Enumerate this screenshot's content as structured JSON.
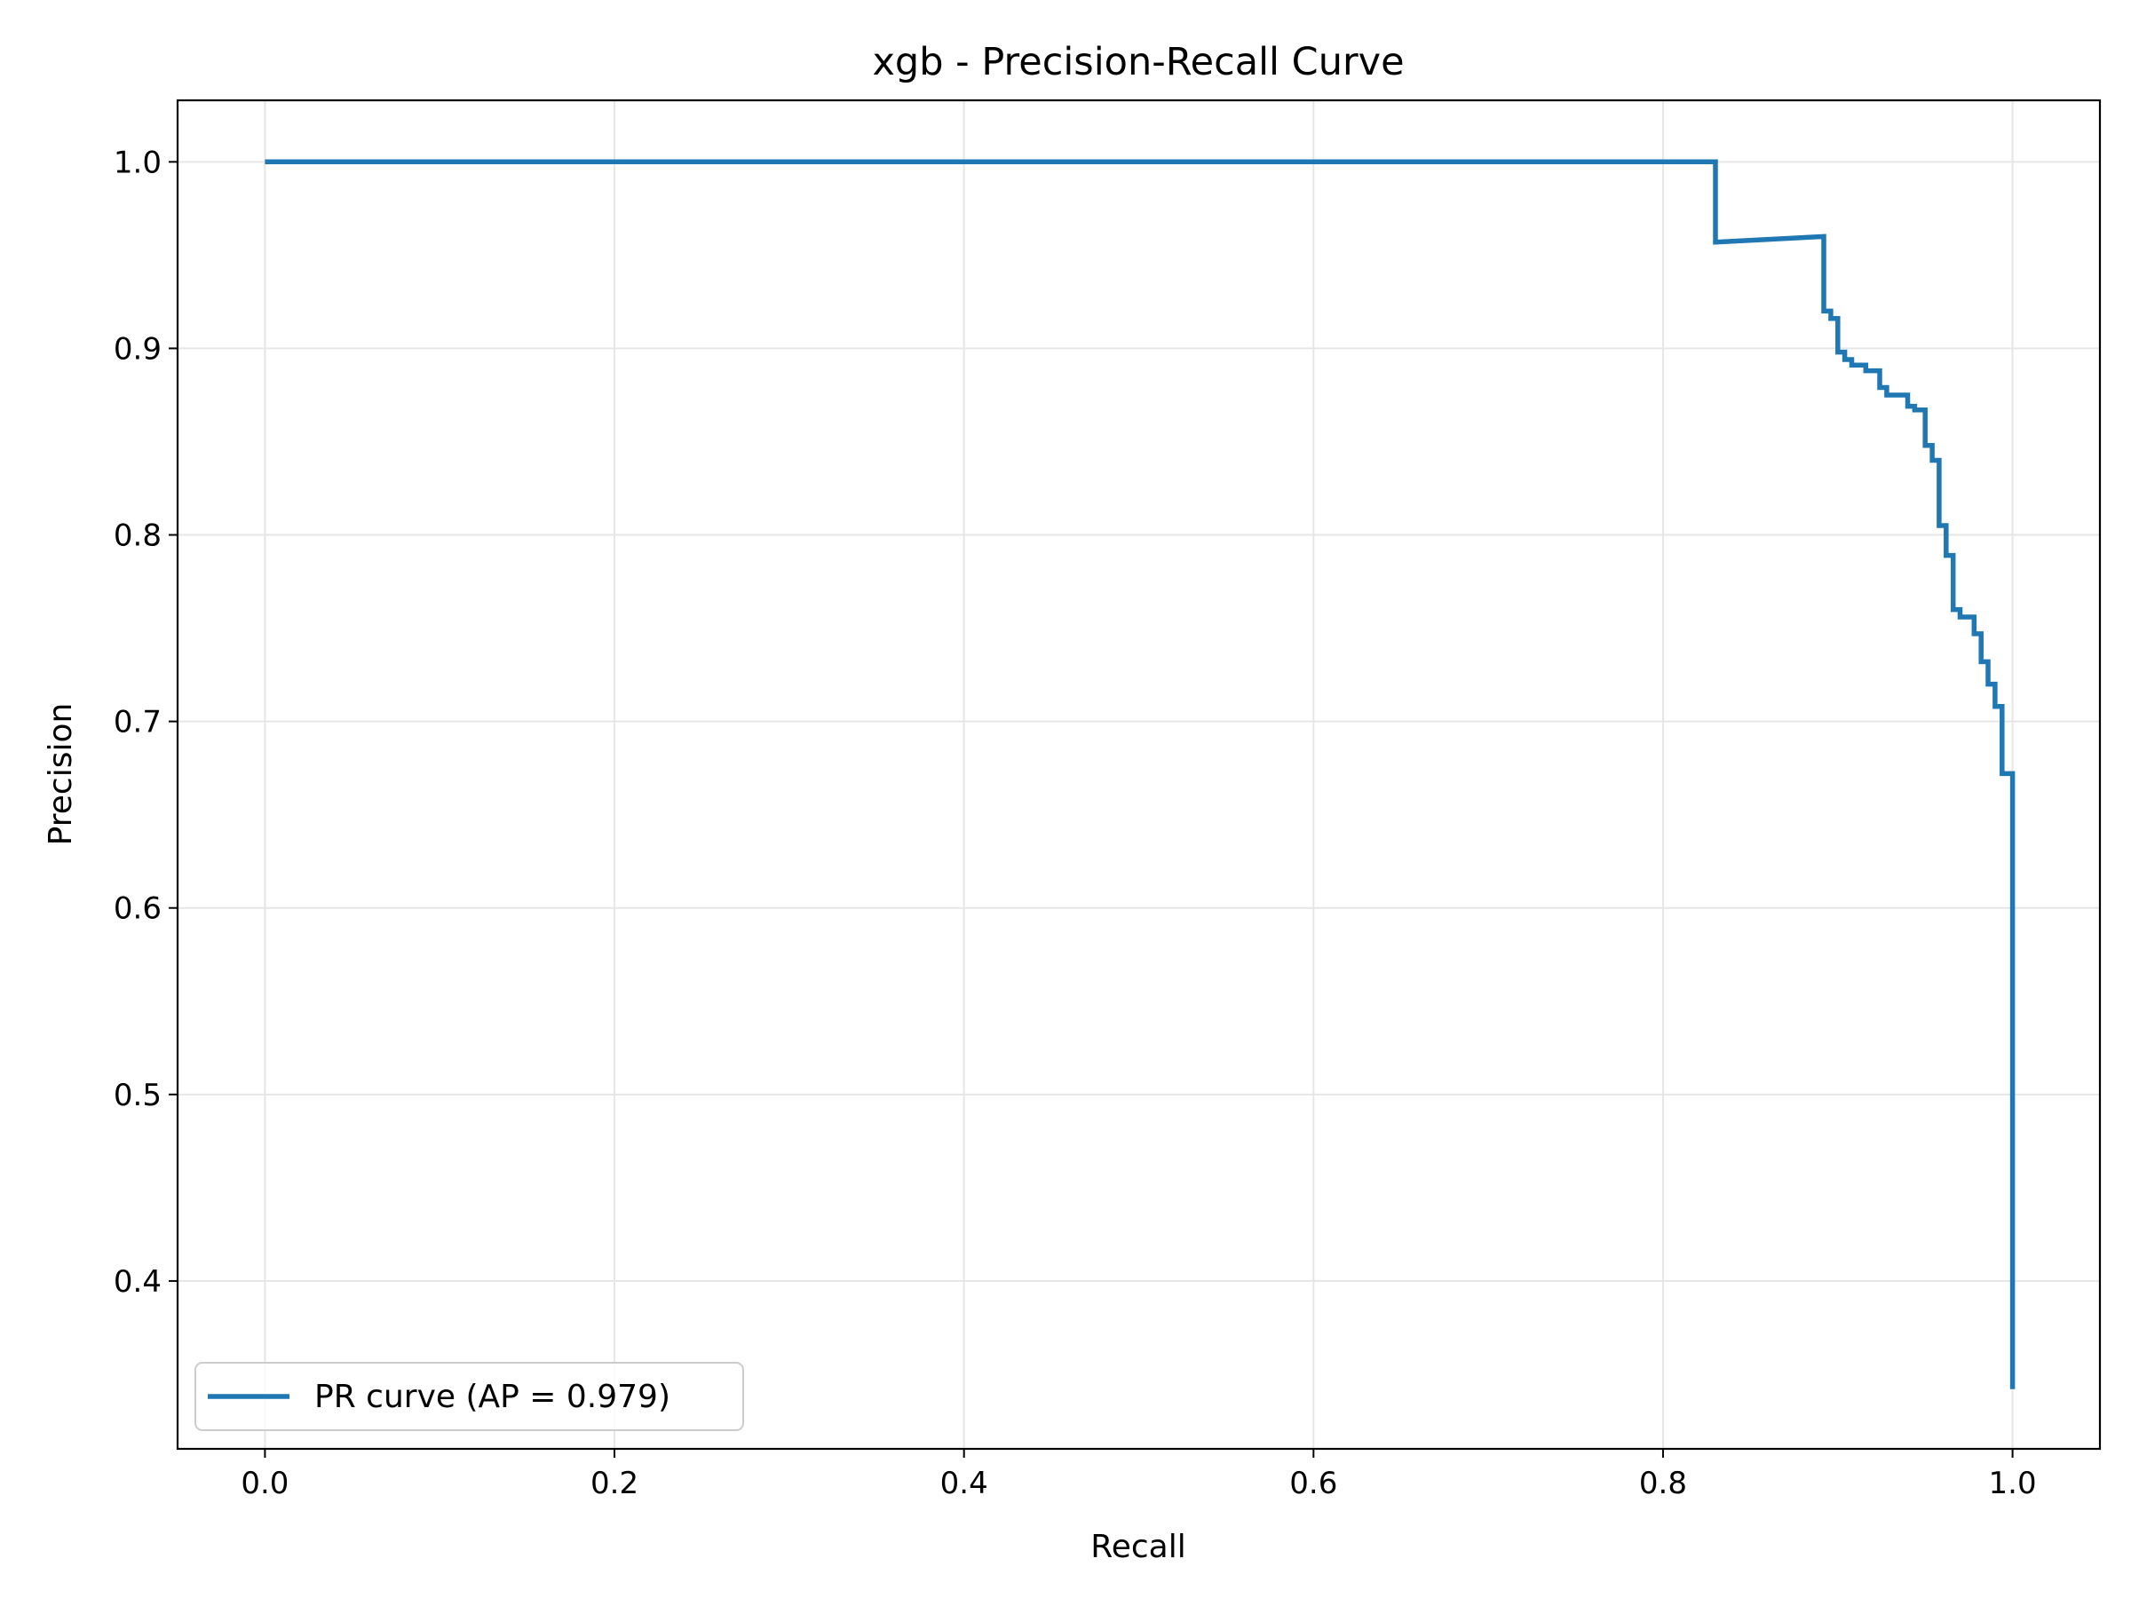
{
  "chart_data": {
    "type": "line",
    "title": "xgb - Precision-Recall Curve",
    "xlabel": "Recall",
    "ylabel": "Precision",
    "xlim": [
      -0.05,
      1.05
    ],
    "ylim": [
      0.31,
      1.033
    ],
    "xticks": [
      0.0,
      0.2,
      0.4,
      0.6,
      0.8,
      1.0
    ],
    "xtick_labels": [
      "0.0",
      "0.2",
      "0.4",
      "0.6",
      "0.8",
      "1.0"
    ],
    "yticks": [
      0.4,
      0.5,
      0.6,
      0.7,
      0.8,
      0.9,
      1.0
    ],
    "ytick_labels": [
      "0.4",
      "0.5",
      "0.6",
      "0.7",
      "0.8",
      "0.9",
      "1.0"
    ],
    "grid": true,
    "legend_position": "lower-left",
    "series": [
      {
        "name": "PR curve (AP = 0.979)",
        "color": "#1f77b4",
        "points": [
          [
            0.0,
            1.0
          ],
          [
            0.83,
            1.0
          ],
          [
            0.83,
            0.957
          ],
          [
            0.892,
            0.96
          ],
          [
            0.892,
            0.92
          ],
          [
            0.896,
            0.92
          ],
          [
            0.896,
            0.916
          ],
          [
            0.9,
            0.916
          ],
          [
            0.9,
            0.898
          ],
          [
            0.904,
            0.898
          ],
          [
            0.904,
            0.894
          ],
          [
            0.908,
            0.894
          ],
          [
            0.908,
            0.891
          ],
          [
            0.916,
            0.891
          ],
          [
            0.916,
            0.888
          ],
          [
            0.924,
            0.888
          ],
          [
            0.924,
            0.879
          ],
          [
            0.928,
            0.879
          ],
          [
            0.928,
            0.875
          ],
          [
            0.94,
            0.875
          ],
          [
            0.94,
            0.869
          ],
          [
            0.944,
            0.869
          ],
          [
            0.944,
            0.867
          ],
          [
            0.95,
            0.867
          ],
          [
            0.95,
            0.848
          ],
          [
            0.954,
            0.848
          ],
          [
            0.954,
            0.84
          ],
          [
            0.958,
            0.84
          ],
          [
            0.958,
            0.805
          ],
          [
            0.962,
            0.805
          ],
          [
            0.962,
            0.789
          ],
          [
            0.966,
            0.789
          ],
          [
            0.966,
            0.76
          ],
          [
            0.97,
            0.76
          ],
          [
            0.97,
            0.756
          ],
          [
            0.978,
            0.756
          ],
          [
            0.978,
            0.747
          ],
          [
            0.982,
            0.747
          ],
          [
            0.982,
            0.732
          ],
          [
            0.986,
            0.732
          ],
          [
            0.986,
            0.72
          ],
          [
            0.99,
            0.72
          ],
          [
            0.99,
            0.708
          ],
          [
            0.994,
            0.708
          ],
          [
            0.994,
            0.672
          ],
          [
            1.0,
            0.672
          ],
          [
            1.0,
            0.342
          ]
        ]
      }
    ]
  }
}
